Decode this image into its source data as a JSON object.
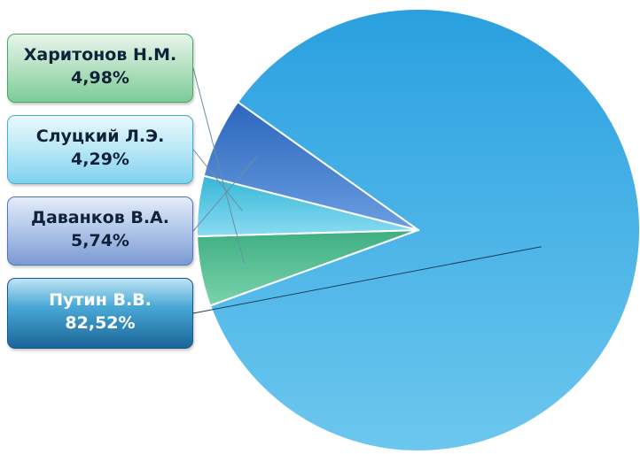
{
  "chart_data": {
    "type": "pie",
    "slices": [
      {
        "name": "Харитонов Н.М.",
        "value": 4.98,
        "label": "4,98%",
        "color": "#52bb92"
      },
      {
        "name": "Слуцкий Л.Э.",
        "value": 4.29,
        "label": "4,29%",
        "color": "#52c5e3"
      },
      {
        "name": "Даванков В.А.",
        "value": 5.74,
        "label": "5,74%",
        "color": "#3f82cf"
      },
      {
        "name": "Путин В.В.",
        "value": 82.52,
        "label": "82,52%",
        "color": "#43ade6"
      }
    ]
  }
}
